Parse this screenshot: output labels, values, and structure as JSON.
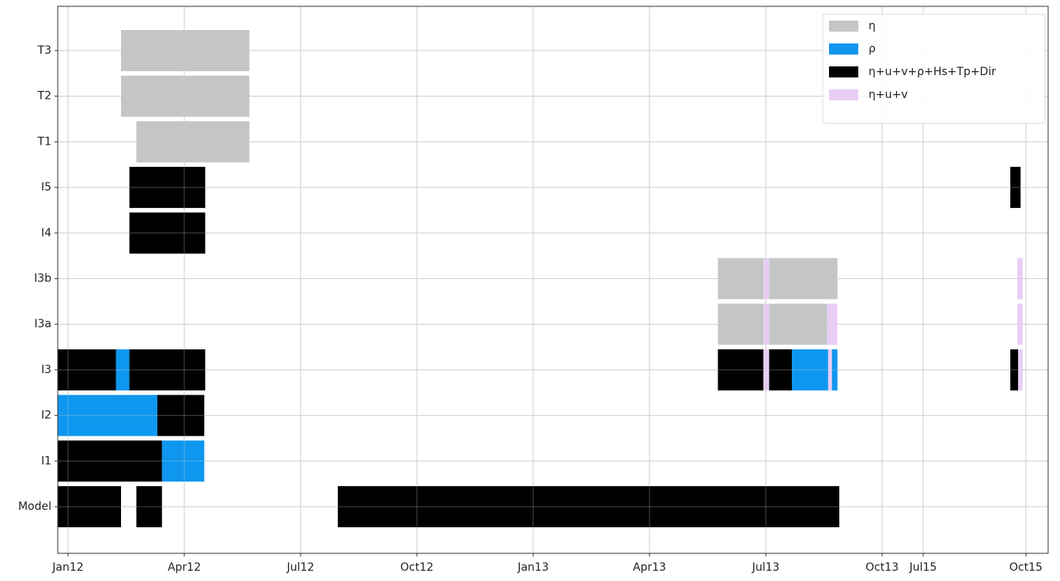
{
  "chart_data": {
    "type": "gantt",
    "categories": [
      "Model",
      "I1",
      "I2",
      "I3",
      "I3a",
      "I3b",
      "I4",
      "I5",
      "T1",
      "T2",
      "T3"
    ],
    "xlim": [
      2011.978,
      2015.804
    ],
    "xbreak": [
      2013.794,
      2015.45
    ],
    "xticks": [
      {
        "value": 2012.0,
        "label": "Jan12"
      },
      {
        "value": 2012.25,
        "label": "Apr12"
      },
      {
        "value": 2012.5,
        "label": "Jul12"
      },
      {
        "value": 2012.75,
        "label": "Oct12"
      },
      {
        "value": 2013.0,
        "label": "Jan13"
      },
      {
        "value": 2013.25,
        "label": "Apr13"
      },
      {
        "value": 2013.5,
        "label": "Jul13"
      },
      {
        "value": 2013.75,
        "label": "Oct13"
      },
      {
        "value": 2015.5,
        "label": "Jul15"
      },
      {
        "value": 2015.75,
        "label": "Oct15"
      }
    ],
    "grid": true,
    "legend": "upper right",
    "series": [
      {
        "name": "η",
        "color": "#c4c6c6",
        "values": [
          [],
          [],
          [],
          [],
          [
            [
              2013.397,
              2013.495
            ],
            [
              2013.507,
              2013.632
            ]
          ],
          [
            [
              2013.397,
              2013.495
            ],
            [
              2013.507,
              2013.654
            ]
          ],
          [],
          [],
          [
            [
              2012.147,
              2012.39
            ]
          ],
          [
            [
              2012.114,
              2012.39
            ]
          ],
          [
            [
              2012.114,
              2012.39
            ]
          ]
        ]
      },
      {
        "name": "ρ",
        "color": "#0f97ef",
        "values": [
          [],
          [
            [
              2012.202,
              2012.293
            ]
          ],
          [
            [
              2011.978,
              2012.192
            ]
          ],
          [
            [
              2012.103,
              2012.132
            ],
            [
              2013.556,
              2013.634
            ],
            [
              2013.642,
              2013.654
            ]
          ],
          [],
          [],
          [],
          [],
          [],
          [],
          []
        ]
      },
      {
        "name": "η+u+v+ρ+Hs+Tp+Dir",
        "color": "#000000",
        "values": [
          [
            [
              2011.978,
              2012.114
            ],
            [
              2012.147,
              2012.202
            ],
            [
              2012.58,
              2013.658
            ]
          ],
          [
            [
              2011.978,
              2012.202
            ]
          ],
          [
            [
              2012.192,
              2012.293
            ]
          ],
          [
            [
              2011.978,
              2012.103
            ],
            [
              2012.132,
              2012.295
            ],
            [
              2013.397,
              2013.495
            ],
            [
              2013.507,
              2013.556
            ],
            [
              2015.712,
              2015.731
            ]
          ],
          [],
          [],
          [
            [
              2012.132,
              2012.295
            ]
          ],
          [
            [
              2012.132,
              2012.295
            ],
            [
              2015.712,
              2015.737
            ]
          ],
          [],
          [],
          []
        ]
      },
      {
        "name": "η+u+v",
        "color": "#e8cdf5",
        "values": [
          [],
          [],
          [],
          [
            [
              2013.495,
              2013.507
            ],
            [
              2013.634,
              2013.642
            ],
            [
              2015.731,
              2015.742
            ]
          ],
          [
            [
              2013.495,
              2013.507
            ],
            [
              2013.632,
              2013.654
            ],
            [
              2015.729,
              2015.742
            ]
          ],
          [
            [
              2013.495,
              2013.507
            ],
            [
              2015.729,
              2015.742
            ]
          ],
          [],
          [],
          [],
          [],
          []
        ]
      }
    ]
  }
}
